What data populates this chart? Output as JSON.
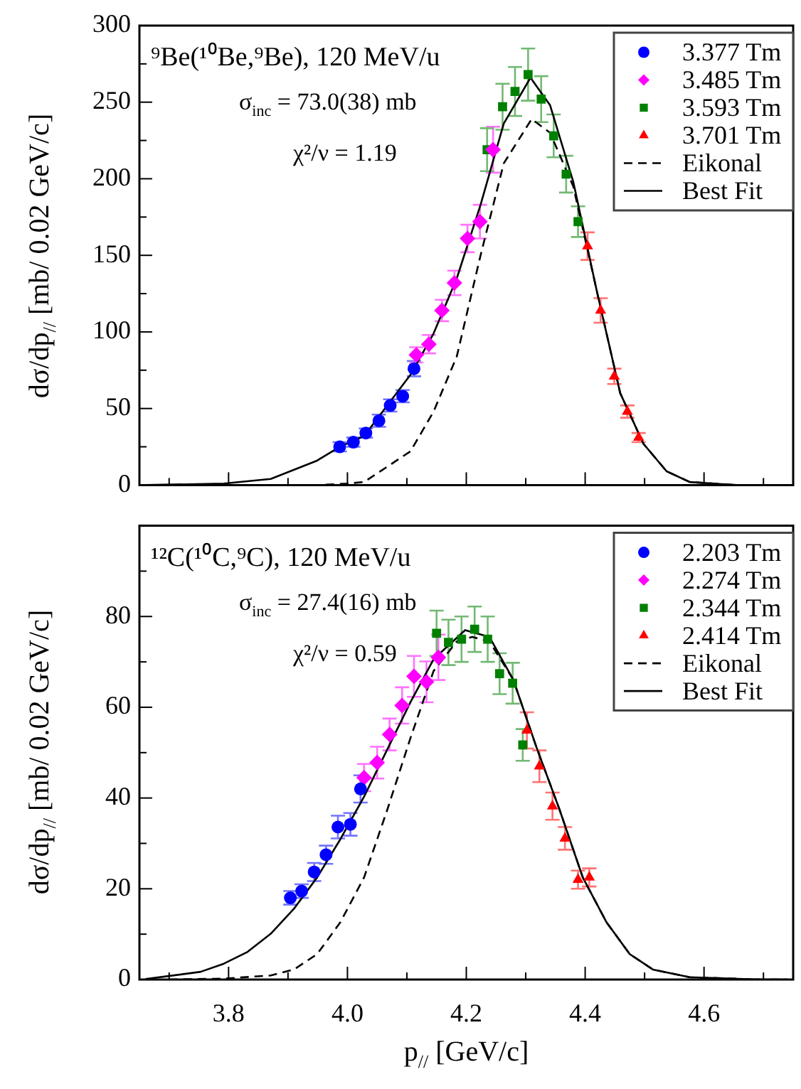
{
  "chart_data": [
    {
      "type": "scatter",
      "ylabel": "dσ/dp$_{//}$ [mb/ 0.02 GeV/c]",
      "annotations": [
        "⁹Be(¹⁰Be,⁹Be), 120 MeV/u",
        "σ$_{inc}$ = 73.0(38) mb",
        "χ²/ν = 1.19"
      ],
      "xlim": [
        3.65,
        4.75
      ],
      "xticks": [
        {
          "value": 3.7,
          "label": null
        },
        3.8,
        {
          "value": 3.9,
          "label": null
        },
        4.0,
        {
          "value": 4.1,
          "label": null
        },
        4.2,
        {
          "value": 4.3,
          "label": null
        },
        4.4,
        {
          "value": 4.5,
          "label": null
        },
        4.6,
        {
          "value": 4.7,
          "label": null
        }
      ],
      "ylim": [
        0,
        300
      ],
      "yticks": [
        0,
        {
          "value": 25,
          "label": null
        },
        50,
        {
          "value": 75,
          "label": null
        },
        100,
        {
          "value": 125,
          "label": null
        },
        150,
        {
          "value": 175,
          "label": null
        },
        200,
        {
          "value": 225,
          "label": null
        },
        250,
        {
          "value": 275,
          "label": null
        },
        300
      ],
      "tick_labels": "y",
      "legend": "top right",
      "series": [
        {
          "name": "3.377 Tm",
          "color": "#0000ff",
          "marker": "circle",
          "x": [
            3.987,
            4.01,
            4.031,
            4.053,
            4.072,
            4.093,
            4.112
          ],
          "values": [
            25,
            28,
            34,
            42,
            52,
            58,
            76
          ],
          "errors": [
            3,
            3,
            3,
            4,
            4,
            4,
            5
          ]
        },
        {
          "name": "3.485 Tm",
          "color": "#ff00ff",
          "marker": "diamond",
          "x": [
            4.116,
            4.137,
            4.159,
            4.18,
            4.202,
            4.223,
            4.245
          ],
          "values": [
            85,
            92,
            114,
            132,
            161,
            172,
            219
          ],
          "errors": [
            5,
            6,
            7,
            8,
            9,
            11,
            15
          ]
        },
        {
          "name": "3.593 Tm",
          "color": "#008000",
          "marker": "square",
          "x": [
            4.235,
            4.261,
            4.282,
            4.304,
            4.326,
            4.347,
            4.368,
            4.388
          ],
          "values": [
            219,
            247,
            257,
            268,
            252,
            228,
            203,
            172
          ],
          "errors": [
            14,
            15,
            16,
            17,
            15,
            14,
            12,
            10
          ]
        },
        {
          "name": "3.701 Tm",
          "color": "#ff0000",
          "marker": "triangle",
          "x": [
            4.404,
            4.426,
            4.449,
            4.471,
            4.49
          ],
          "values": [
            156,
            114,
            71,
            48,
            31
          ],
          "errors": [
            9,
            8,
            5,
            4,
            3
          ]
        },
        {
          "name": "Eikonal",
          "type": "line",
          "color": "#000000",
          "marker": "none",
          "line_style": "dashed",
          "x": [
            3.7,
            3.95,
            4.0,
            4.028,
            4.106,
            4.145,
            4.184,
            4.224,
            4.263,
            4.31,
            4.341,
            4.38,
            4.42,
            4.459,
            4.498,
            4.537,
            4.576,
            4.655,
            4.74
          ],
          "values": [
            0,
            0,
            1,
            2,
            22,
            48,
            84,
            150,
            210,
            239,
            230,
            195,
            126,
            60,
            27,
            9,
            2,
            0,
            0
          ]
        },
        {
          "name": "Best Fit",
          "type": "line",
          "color": "#000000",
          "marker": "none",
          "line_style": "solid",
          "x": [
            3.66,
            3.792,
            3.871,
            3.949,
            3.987,
            4.028,
            4.106,
            4.145,
            4.184,
            4.224,
            4.263,
            4.308,
            4.341,
            4.38,
            4.42,
            4.459,
            4.498,
            4.537,
            4.576,
            4.655,
            4.74
          ],
          "values": [
            0,
            1,
            4,
            16,
            25,
            32,
            72,
            99,
            135,
            183,
            236,
            266,
            248,
            198,
            126,
            60,
            27,
            9,
            2,
            0,
            0
          ]
        }
      ]
    },
    {
      "type": "scatter",
      "xlabel": "p$_{//}$ [GeV/c]",
      "ylabel": "dσ/dp$_{//}$ [mb/ 0.02 GeV/c]",
      "annotations": [
        "¹²C(¹⁰C,⁹C), 120 MeV/u",
        "σ$_{inc}$ = 27.4(16) mb",
        "χ²/ν = 0.59"
      ],
      "xlim": [
        3.65,
        4.75
      ],
      "xticks": [
        {
          "value": 3.7,
          "label": null
        },
        3.8,
        {
          "value": 3.9,
          "label": null
        },
        {
          "value": 4,
          "label": "4.0"
        },
        {
          "value": 4.1,
          "label": null
        },
        4.2,
        {
          "value": 4.3,
          "label": null
        },
        4.4,
        {
          "value": 4.5,
          "label": null
        },
        4.6,
        {
          "value": 4.7,
          "label": null
        }
      ],
      "ylim": [
        0,
        100
      ],
      "yticks": [
        0,
        {
          "value": 10,
          "label": null
        },
        20,
        {
          "value": 30,
          "label": null
        },
        40,
        {
          "value": 50,
          "label": null
        },
        60,
        {
          "value": 70,
          "label": null
        },
        80,
        {
          "value": 90,
          "label": null
        },
        {
          "value": 100,
          "label": null
        }
      ],
      "legend": "top right",
      "series": [
        {
          "name": "2.203 Tm",
          "color": "#0000ff",
          "marker": "circle",
          "x": [
            3.904,
            3.923,
            3.944,
            3.964,
            3.984,
            4.005,
            4.022
          ],
          "values": [
            18.0,
            19.5,
            23.7,
            27.5,
            33.6,
            34.2,
            42.0
          ],
          "errors": [
            1.5,
            1.5,
            2,
            2,
            2.5,
            2.5,
            3
          ]
        },
        {
          "name": "2.274 Tm",
          "color": "#ff00ff",
          "marker": "diamond",
          "x": [
            4.028,
            4.05,
            4.071,
            4.092,
            4.112,
            4.133,
            4.153
          ],
          "values": [
            44.5,
            47.8,
            54.0,
            60.4,
            66.8,
            65.6,
            71.0
          ],
          "errors": [
            3,
            3.5,
            3.5,
            4,
            4.5,
            4.5,
            5
          ]
        },
        {
          "name": "2.344 Tm",
          "color": "#008000",
          "marker": "square",
          "x": [
            4.15,
            4.17,
            4.192,
            4.214,
            4.236,
            4.256,
            4.278,
            4.295
          ],
          "values": [
            76.3,
            74.3,
            75.0,
            77.2,
            75.0,
            67.4,
            65.3,
            51.7
          ],
          "errors": [
            5,
            5,
            5,
            5,
            5,
            4.5,
            4.5,
            3.5
          ]
        },
        {
          "name": "2.414 Tm",
          "color": "#ff0000",
          "marker": "triangle",
          "x": [
            4.302,
            4.323,
            4.345,
            4.366,
            4.388,
            4.407
          ],
          "values": [
            54.9,
            47.0,
            38.2,
            31.1,
            22.0,
            22.5
          ],
          "errors": [
            4,
            3.5,
            3,
            2.5,
            2,
            2
          ]
        },
        {
          "name": "Eikonal",
          "type": "line",
          "color": "#000000",
          "marker": "none",
          "line_style": "dashed",
          "x": [
            3.7,
            3.792,
            3.871,
            3.91,
            3.949,
            3.988,
            4.028,
            4.067,
            4.106,
            4.145,
            4.184,
            4.21,
            4.239,
            4.279,
            4.318,
            4.357,
            4.396,
            4.436,
            4.475,
            4.514,
            4.576,
            4.694,
            4.74
          ],
          "values": [
            0,
            0.2,
            0.9,
            2.2,
            5.6,
            12.6,
            22.5,
            37.4,
            53.2,
            68,
            74.5,
            75.5,
            74.5,
            66.1,
            51.2,
            37.4,
            22.5,
            12.6,
            5.6,
            2.2,
            0.5,
            0,
            0
          ]
        },
        {
          "name": "Best Fit",
          "type": "line",
          "color": "#000000",
          "marker": "none",
          "line_style": "solid",
          "x": [
            3.66,
            3.753,
            3.792,
            3.832,
            3.871,
            3.91,
            3.949,
            3.988,
            4.028,
            4.067,
            4.106,
            4.145,
            4.198,
            4.239,
            4.279,
            4.318,
            4.357,
            4.396,
            4.436,
            4.475,
            4.514,
            4.576,
            4.694,
            4.74
          ],
          "values": [
            0.1,
            1.7,
            3.5,
            6.1,
            10.1,
            15.6,
            22.5,
            30.9,
            40.3,
            50.7,
            61.1,
            70.6,
            77.0,
            75.5,
            66.1,
            51.2,
            37.4,
            22.5,
            12.6,
            5.6,
            2.2,
            0.5,
            0,
            0
          ]
        }
      ]
    }
  ]
}
